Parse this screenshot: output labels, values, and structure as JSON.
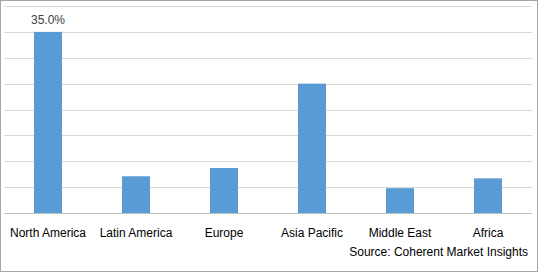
{
  "chart_data": {
    "type": "bar",
    "categories": [
      "North America",
      "Latin America",
      "Europe",
      "Asia Pacific",
      "Middle East",
      "Africa"
    ],
    "values": [
      35.0,
      7.1,
      8.7,
      25.0,
      4.8,
      6.7
    ],
    "value_labels": [
      "35.0%",
      null,
      null,
      null,
      null,
      null
    ],
    "data_labels": true,
    "color": "#5b9bd5",
    "ylim": [
      0,
      40
    ],
    "yticks": [
      0,
      5,
      10,
      15,
      20,
      25,
      30,
      35,
      40
    ],
    "grid": true,
    "tick_labels": "x",
    "source": "Source: Coherent Market Insights"
  }
}
